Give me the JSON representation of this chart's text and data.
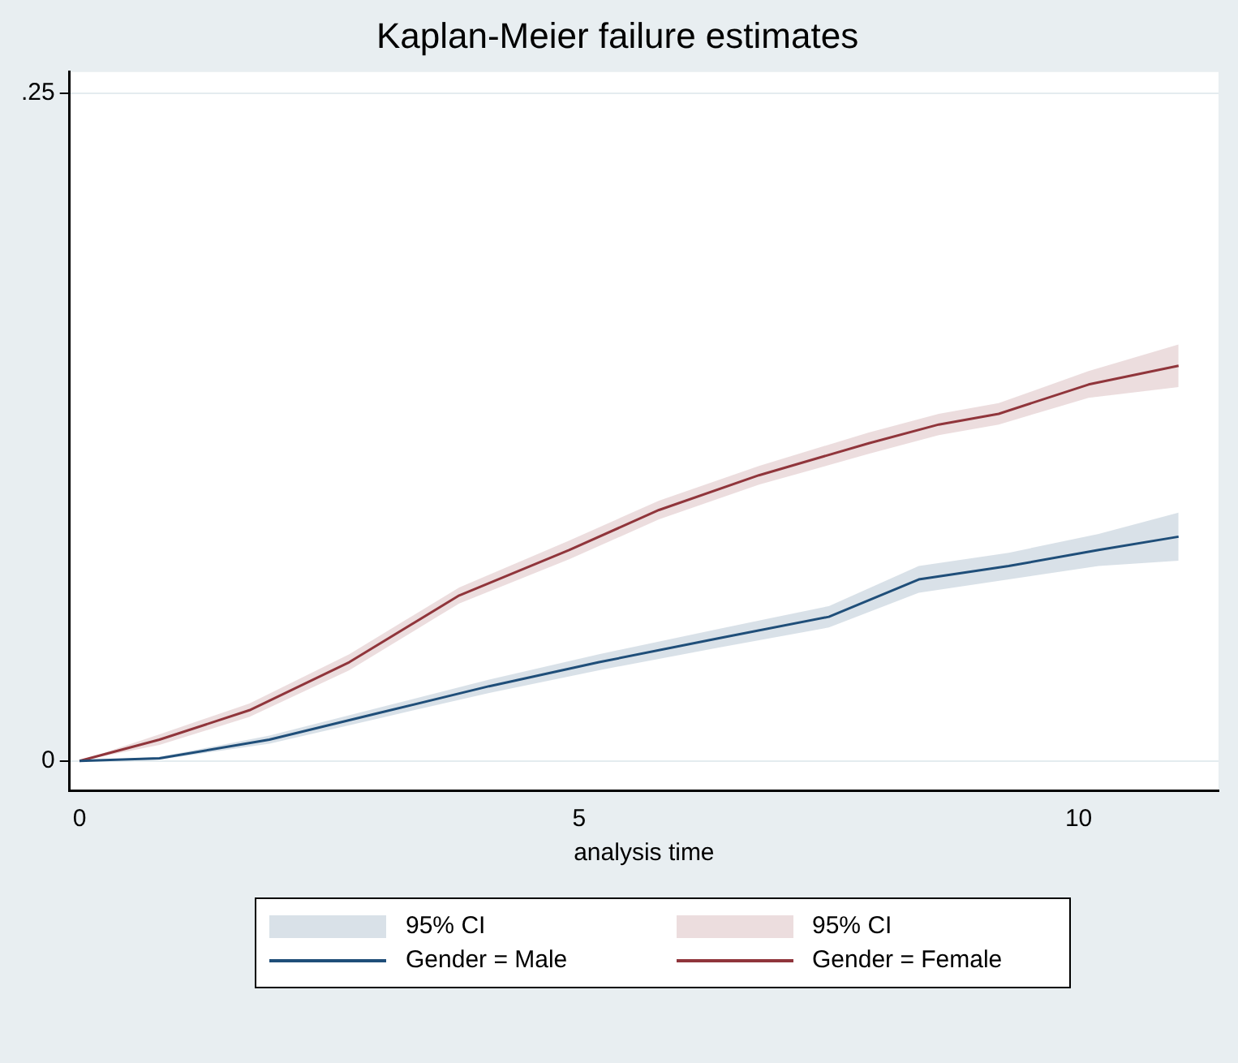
{
  "chart_data": {
    "type": "line",
    "title": "Kaplan-Meier failure estimates",
    "xlabel": "analysis time",
    "xlim": [
      -0.1,
      11.4
    ],
    "xticks": [
      0,
      5,
      10
    ],
    "ylim": [
      -0.011,
      0.258
    ],
    "yticks": [
      0,
      {
        "value": 0.25,
        "label": ".25"
      }
    ],
    "grid": "y",
    "legend": "bottom",
    "annotations": [
      "95% CI",
      "95% CI"
    ],
    "series": [
      {
        "name": "Gender = Male",
        "color": "#1f4e79",
        "x": [
          0,
          0.8,
          1.9,
          3,
          4.1,
          5.2,
          6.4,
          7.5,
          8.4,
          9.3,
          10.2,
          11
        ],
        "values": [
          0,
          0.001,
          0.008,
          0.018,
          0.028,
          0.037,
          0.046,
          0.054,
          0.068,
          0.073,
          0.079,
          0.084
        ],
        "lower": [
          0,
          0.0005,
          0.0065,
          0.016,
          0.0255,
          0.034,
          0.0425,
          0.05,
          0.063,
          0.068,
          0.073,
          0.075
        ],
        "upper": [
          0,
          0.0015,
          0.0095,
          0.02,
          0.0305,
          0.04,
          0.0495,
          0.058,
          0.073,
          0.078,
          0.085,
          0.093
        ]
      },
      {
        "name": "Gender = Female",
        "color": "#90353b",
        "x": [
          0,
          0.8,
          1.7,
          2.7,
          3.8,
          4.9,
          5.8,
          6.8,
          7.9,
          8.6,
          9.2,
          10.1,
          11
        ],
        "values": [
          0,
          0.008,
          0.019,
          0.037,
          0.062,
          0.079,
          0.094,
          0.107,
          0.119,
          0.126,
          0.13,
          0.141,
          0.148
        ],
        "lower": [
          0,
          0.006,
          0.0165,
          0.034,
          0.059,
          0.0755,
          0.0905,
          0.1035,
          0.115,
          0.122,
          0.126,
          0.136,
          0.14
        ],
        "upper": [
          0,
          0.01,
          0.0215,
          0.04,
          0.065,
          0.0825,
          0.0975,
          0.1105,
          0.123,
          0.13,
          0.134,
          0.146,
          0.156
        ]
      }
    ]
  }
}
